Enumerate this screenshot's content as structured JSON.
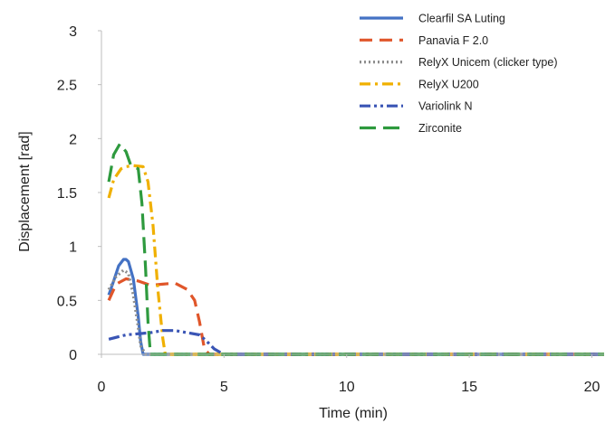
{
  "chart_data": {
    "type": "line",
    "xlabel": "Time (min)",
    "ylabel": "Displacement [rad]",
    "xlim": [
      0,
      20.5
    ],
    "ylim": [
      0,
      3
    ],
    "xticks": [
      0,
      5,
      10,
      15,
      20
    ],
    "xtick_labels": [
      "0",
      "5",
      "10",
      "15",
      "20"
    ],
    "yticks": [
      0,
      0.5,
      1,
      1.5,
      2,
      2.5,
      3
    ],
    "ytick_labels": [
      "0",
      "0.5",
      "1",
      "1.5",
      "2",
      "2.5",
      "3"
    ],
    "grid": false,
    "legend_position": "top-right",
    "series": [
      {
        "name": "Clearfil SA Luting",
        "color": "#4472c4",
        "dash": "solid",
        "x": [
          0.3,
          0.5,
          0.7,
          0.9,
          1.0,
          1.1,
          1.3,
          1.5,
          1.6,
          1.7,
          2,
          5,
          10,
          15,
          20.5
        ],
        "y": [
          0.55,
          0.68,
          0.82,
          0.88,
          0.88,
          0.86,
          0.7,
          0.35,
          0.12,
          0.0,
          0.0,
          0.0,
          0.0,
          0.0,
          0.0
        ]
      },
      {
        "name": "Panavia F 2.0",
        "color": "#e0562a",
        "dash": "dash",
        "x": [
          0.3,
          0.6,
          1.0,
          1.5,
          2.0,
          2.5,
          3.0,
          3.5,
          3.8,
          4.0,
          4.2,
          4.4,
          5,
          10,
          15,
          20.5
        ],
        "y": [
          0.5,
          0.65,
          0.7,
          0.68,
          0.64,
          0.65,
          0.66,
          0.6,
          0.5,
          0.3,
          0.05,
          0.0,
          0.0,
          0.0,
          0.0,
          0.0
        ]
      },
      {
        "name": "RelyX Unicem (clicker type)",
        "color": "#8e8e8e",
        "dash": "dot",
        "x": [
          0.3,
          0.6,
          0.9,
          1.1,
          1.3,
          1.5,
          1.6,
          1.8,
          5,
          10,
          15,
          20.5
        ],
        "y": [
          0.6,
          0.72,
          0.78,
          0.75,
          0.55,
          0.25,
          0.08,
          0.0,
          0.0,
          0.0,
          0.0,
          0.0
        ]
      },
      {
        "name": "RelyX U200",
        "color": "#f0b000",
        "dash": "dashdot",
        "x": [
          0.3,
          0.5,
          0.8,
          1.0,
          1.3,
          1.7,
          1.9,
          2.1,
          2.3,
          2.5,
          2.6,
          5,
          10,
          15,
          20.5
        ],
        "y": [
          1.45,
          1.62,
          1.72,
          1.74,
          1.75,
          1.74,
          1.6,
          1.2,
          0.6,
          0.15,
          0.0,
          0.0,
          0.0,
          0.0,
          0.0
        ]
      },
      {
        "name": "Variolink N",
        "color": "#3a55b5",
        "dash": "dashdotdot",
        "x": [
          0.3,
          1.0,
          2.0,
          2.5,
          3.0,
          3.5,
          4.0,
          4.3,
          4.6,
          4.9,
          5.0,
          10,
          15,
          20.5
        ],
        "y": [
          0.14,
          0.18,
          0.2,
          0.22,
          0.22,
          0.2,
          0.18,
          0.12,
          0.05,
          0.01,
          0.0,
          0.0,
          0.0,
          0.0
        ]
      },
      {
        "name": "Zirconite",
        "color": "#2e9a3e",
        "dash": "longdash",
        "x": [
          0.3,
          0.5,
          0.75,
          1.0,
          1.2,
          1.5,
          1.65,
          1.8,
          1.9,
          2.0,
          5,
          10,
          15,
          20.5
        ],
        "y": [
          1.6,
          1.85,
          1.95,
          1.88,
          1.75,
          1.72,
          1.4,
          0.8,
          0.3,
          0.0,
          0.0,
          0.0,
          0.0,
          0.0
        ]
      }
    ]
  }
}
